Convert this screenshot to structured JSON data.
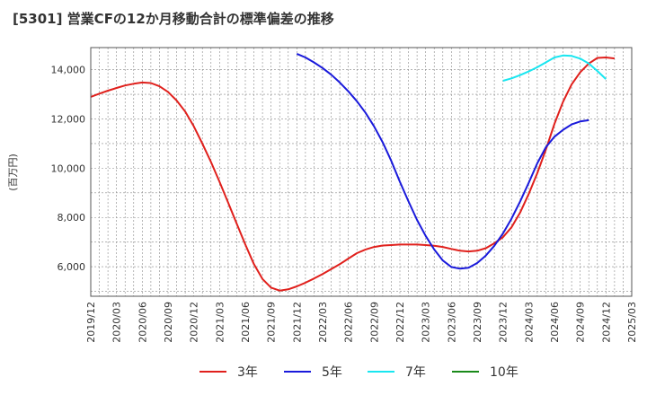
{
  "chart_data": {
    "type": "line",
    "title": "[5301]  営業CFの12か月移動合計の標準偏差の推移",
    "ylabel": "(百万円)",
    "xlabel": "",
    "ylim": [
      4800,
      14900
    ],
    "yticks": [
      6000,
      8000,
      10000,
      12000,
      14000
    ],
    "ytick_labels": [
      "6,000",
      "8,000",
      "10,000",
      "12,000",
      "14,000"
    ],
    "xticks": [
      "2019/12",
      "2020/03",
      "2020/06",
      "2020/09",
      "2020/12",
      "2021/03",
      "2021/06",
      "2021/09",
      "2021/12",
      "2022/03",
      "2022/06",
      "2022/09",
      "2022/12",
      "2023/03",
      "2023/06",
      "2023/09",
      "2023/12",
      "2024/03",
      "2024/06",
      "2024/09",
      "2024/12",
      "2025/03"
    ],
    "grid": true,
    "legend_position": "bottom",
    "series": [
      {
        "name": "3年",
        "color": "#e0201c",
        "points": [
          [
            "2019/12",
            12900
          ],
          [
            "2020/01",
            13030
          ],
          [
            "2020/02",
            13150
          ],
          [
            "2020/03",
            13260
          ],
          [
            "2020/04",
            13360
          ],
          [
            "2020/05",
            13430
          ],
          [
            "2020/06",
            13480
          ],
          [
            "2020/07",
            13460
          ],
          [
            "2020/08",
            13330
          ],
          [
            "2020/09",
            13100
          ],
          [
            "2020/10",
            12750
          ],
          [
            "2020/11",
            12300
          ],
          [
            "2020/12",
            11700
          ],
          [
            "2021/01",
            11000
          ],
          [
            "2021/02",
            10250
          ],
          [
            "2021/03",
            9450
          ],
          [
            "2021/04",
            8600
          ],
          [
            "2021/05",
            7750
          ],
          [
            "2021/06",
            6900
          ],
          [
            "2021/07",
            6100
          ],
          [
            "2021/08",
            5500
          ],
          [
            "2021/09",
            5150
          ],
          [
            "2021/10",
            5030
          ],
          [
            "2021/11",
            5080
          ],
          [
            "2021/12",
            5200
          ],
          [
            "2022/01",
            5350
          ],
          [
            "2022/02",
            5520
          ],
          [
            "2022/03",
            5700
          ],
          [
            "2022/04",
            5900
          ],
          [
            "2022/05",
            6100
          ],
          [
            "2022/06",
            6330
          ],
          [
            "2022/07",
            6550
          ],
          [
            "2022/08",
            6700
          ],
          [
            "2022/09",
            6800
          ],
          [
            "2022/10",
            6860
          ],
          [
            "2022/11",
            6880
          ],
          [
            "2022/12",
            6900
          ],
          [
            "2023/01",
            6900
          ],
          [
            "2023/02",
            6900
          ],
          [
            "2023/03",
            6880
          ],
          [
            "2023/04",
            6850
          ],
          [
            "2023/05",
            6800
          ],
          [
            "2023/06",
            6720
          ],
          [
            "2023/07",
            6650
          ],
          [
            "2023/08",
            6620
          ],
          [
            "2023/09",
            6650
          ],
          [
            "2023/10",
            6750
          ],
          [
            "2023/11",
            6950
          ],
          [
            "2023/12",
            7200
          ],
          [
            "2024/01",
            7600
          ],
          [
            "2024/02",
            8200
          ],
          [
            "2024/03",
            8950
          ],
          [
            "2024/04",
            9800
          ],
          [
            "2024/05",
            10750
          ],
          [
            "2024/06",
            11800
          ],
          [
            "2024/07",
            12700
          ],
          [
            "2024/08",
            13400
          ],
          [
            "2024/09",
            13900
          ],
          [
            "2024/10",
            14250
          ],
          [
            "2024/11",
            14480
          ],
          [
            "2024/12",
            14500
          ],
          [
            "2025/01",
            14460
          ]
        ]
      },
      {
        "name": "5年",
        "color": "#1a1adb",
        "points": [
          [
            "2021/12",
            14650
          ],
          [
            "2022/01",
            14500
          ],
          [
            "2022/02",
            14300
          ],
          [
            "2022/03",
            14070
          ],
          [
            "2022/04",
            13800
          ],
          [
            "2022/05",
            13480
          ],
          [
            "2022/06",
            13120
          ],
          [
            "2022/07",
            12720
          ],
          [
            "2022/08",
            12250
          ],
          [
            "2022/09",
            11700
          ],
          [
            "2022/10",
            11050
          ],
          [
            "2022/11",
            10300
          ],
          [
            "2022/12",
            9450
          ],
          [
            "2023/01",
            8650
          ],
          [
            "2023/02",
            7900
          ],
          [
            "2023/03",
            7250
          ],
          [
            "2023/04",
            6700
          ],
          [
            "2023/05",
            6250
          ],
          [
            "2023/06",
            5990
          ],
          [
            "2023/07",
            5920
          ],
          [
            "2023/08",
            5960
          ],
          [
            "2023/09",
            6150
          ],
          [
            "2023/10",
            6450
          ],
          [
            "2023/11",
            6850
          ],
          [
            "2023/12",
            7350
          ],
          [
            "2024/01",
            7950
          ],
          [
            "2024/02",
            8650
          ],
          [
            "2024/03",
            9400
          ],
          [
            "2024/04",
            10200
          ],
          [
            "2024/05",
            10850
          ],
          [
            "2024/06",
            11280
          ],
          [
            "2024/07",
            11560
          ],
          [
            "2024/08",
            11780
          ],
          [
            "2024/09",
            11900
          ],
          [
            "2024/10",
            11950
          ]
        ]
      },
      {
        "name": "7年",
        "color": "#19e6f0",
        "points": [
          [
            "2023/12",
            13550
          ],
          [
            "2024/01",
            13650
          ],
          [
            "2024/02",
            13780
          ],
          [
            "2024/03",
            13930
          ],
          [
            "2024/04",
            14100
          ],
          [
            "2024/05",
            14300
          ],
          [
            "2024/06",
            14500
          ],
          [
            "2024/07",
            14580
          ],
          [
            "2024/08",
            14560
          ],
          [
            "2024/09",
            14450
          ],
          [
            "2024/10",
            14250
          ],
          [
            "2024/11",
            13950
          ],
          [
            "2024/12",
            13620
          ]
        ]
      },
      {
        "name": "10年",
        "color": "#1a8a1a",
        "points": []
      }
    ]
  }
}
